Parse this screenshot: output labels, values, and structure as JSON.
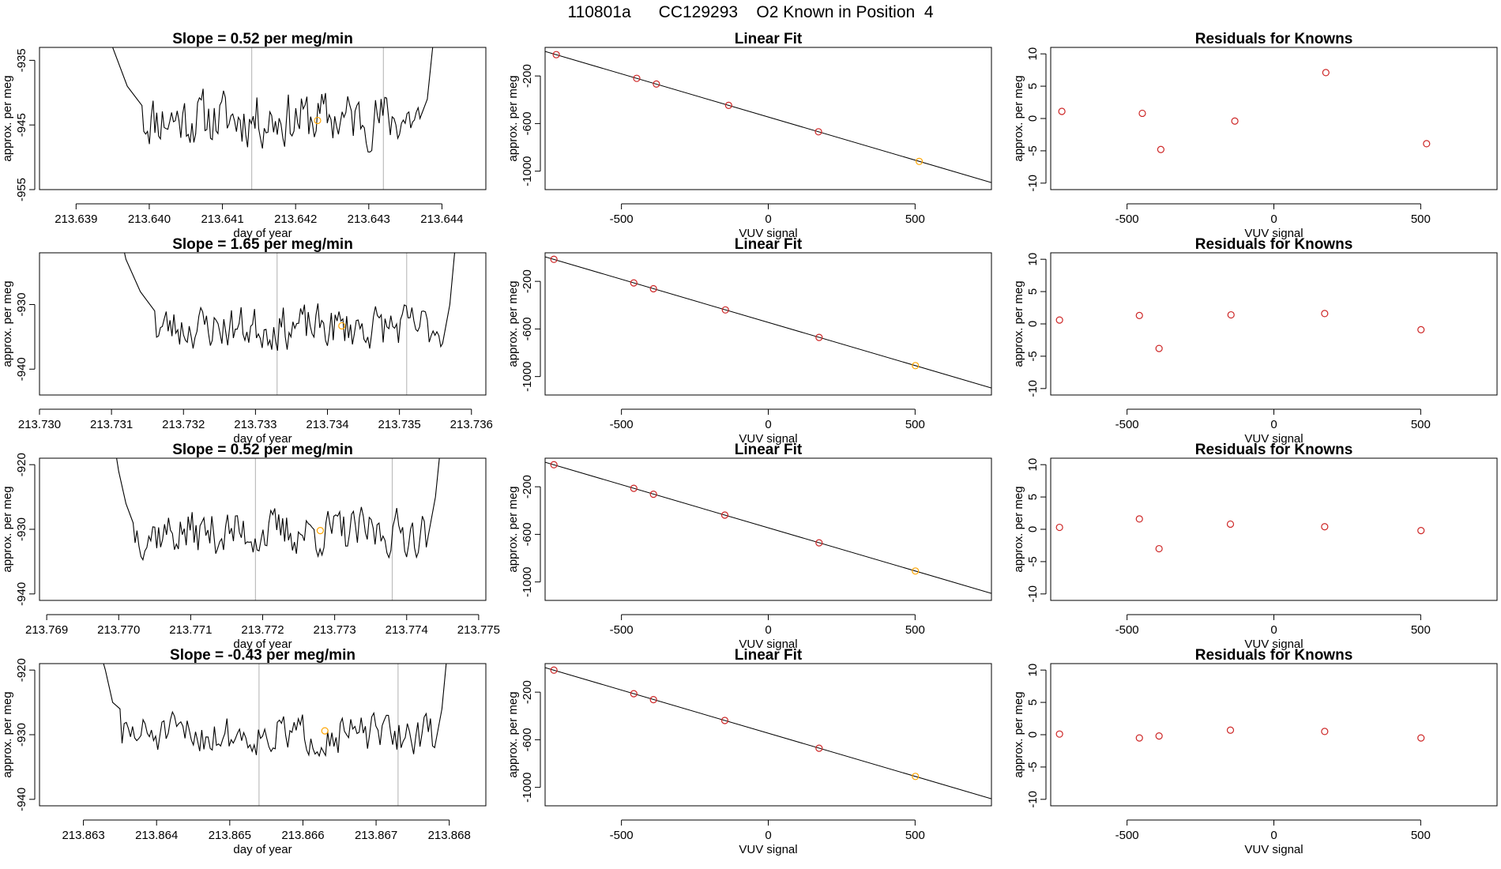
{
  "page": {
    "title": "110801a      CC129293    O2 Known in Position  4"
  },
  "colors": {
    "trace": "#000000",
    "marker": "#ffa500",
    "residual": "#cd2626",
    "vline": "#bebebe",
    "axis": "#000000"
  },
  "chart_data": [
    {
      "id": "trace-row1",
      "type": "line",
      "title": "Slope =  0.52  per meg/min",
      "xlabel": "day of year",
      "ylabel": "approx. per meg",
      "xlim": [
        213.6385,
        213.6446
      ],
      "ylim": [
        -955,
        -933
      ],
      "xticks": [
        213.639,
        213.64,
        213.641,
        213.642,
        213.643,
        213.644
      ],
      "xtick_labels": [
        "213.639",
        "213.640",
        "213.641",
        "213.642",
        "213.643",
        "213.644"
      ],
      "yticks": [
        -955,
        -945,
        -935
      ],
      "ytick_labels": [
        "-955",
        "-945",
        "-935"
      ],
      "vlines": [
        213.6414,
        213.6432
      ],
      "trace_span": [
        213.6394,
        213.6439
      ],
      "trace_mean": -944.0,
      "trace_noise": 2.4,
      "trace_seed": 11,
      "trace_left": [
        [
          213.6394,
          -928
        ],
        [
          213.6395,
          -933
        ],
        [
          213.6397,
          -939
        ],
        [
          213.6399,
          -942
        ]
      ],
      "trace_right": [
        [
          213.6437,
          -944
        ],
        [
          213.6438,
          -941
        ],
        [
          213.6439,
          -930
        ]
      ],
      "marker": {
        "x": 213.6423,
        "y": -944.3
      }
    },
    {
      "id": "fit-row1",
      "type": "scatter",
      "title": "Linear Fit",
      "xlabel": "VUV signal",
      "ylabel": "approx. per meg",
      "xlim": [
        -760,
        760
      ],
      "ylim": [
        -1155,
        40
      ],
      "xticks": [
        -500,
        0,
        500
      ],
      "xtick_labels": [
        "-500",
        "0",
        "500"
      ],
      "yticks": [
        -1000,
        -600,
        -200
      ],
      "ytick_labels": [
        "-1000",
        "-600",
        "-200"
      ],
      "line": {
        "intercept": -545,
        "slope": -0.725,
        "x": [
          -760,
          760
        ]
      },
      "points": [
        {
          "x": -722,
          "y": -21,
          "marker": false
        },
        {
          "x": -448,
          "y": -220,
          "marker": false
        },
        {
          "x": -381,
          "y": -268,
          "marker": false
        },
        {
          "x": -135,
          "y": -447,
          "marker": false
        },
        {
          "x": 171,
          "y": -669,
          "marker": false
        },
        {
          "x": 514,
          "y": -918,
          "marker": true
        }
      ]
    },
    {
      "id": "resid-row1",
      "type": "scatter",
      "title": "Residuals for Knowns",
      "xlabel": "VUV signal",
      "ylabel": "approx. per meg",
      "xlim": [
        -760,
        760
      ],
      "ylim": [
        -11,
        11
      ],
      "xticks": [
        -500,
        0,
        500
      ],
      "xtick_labels": [
        "-500",
        "0",
        "500"
      ],
      "yticks": [
        -10,
        -5,
        0,
        5,
        10
      ],
      "ytick_labels": [
        "-10",
        "-5",
        "0",
        "5",
        "10"
      ],
      "points": [
        {
          "x": -722,
          "y": 1.1
        },
        {
          "x": -448,
          "y": 0.8
        },
        {
          "x": -385,
          "y": -4.8
        },
        {
          "x": -133,
          "y": -0.4
        },
        {
          "x": 177,
          "y": 7.1
        },
        {
          "x": 520,
          "y": -3.9
        }
      ]
    },
    {
      "id": "trace-row2",
      "type": "line",
      "title": "Slope =  1.65  per meg/min",
      "xlabel": "day of year",
      "ylabel": "approx. per meg",
      "xlim": [
        213.73,
        213.7362
      ],
      "ylim": [
        -944,
        -922
      ],
      "xticks": [
        213.73,
        213.731,
        213.732,
        213.733,
        213.734,
        213.735,
        213.736
      ],
      "xtick_labels": [
        "213.730",
        "213.731",
        "213.732",
        "213.733",
        "213.734",
        "213.735",
        "213.736"
      ],
      "yticks": [
        -940,
        -930
      ],
      "ytick_labels": [
        "-940",
        "-930"
      ],
      "vlines": [
        213.7333,
        213.7351
      ],
      "trace_span": [
        213.7311,
        213.7358
      ],
      "trace_mean": -933.5,
      "trace_noise": 1.9,
      "trace_seed": 23,
      "trace_left": [
        [
          213.7311,
          -918
        ],
        [
          213.7312,
          -923
        ],
        [
          213.7314,
          -928
        ],
        [
          213.7316,
          -931
        ]
      ],
      "trace_right": [
        [
          213.7356,
          -936
        ],
        [
          213.7357,
          -930
        ],
        [
          213.7358,
          -918
        ]
      ],
      "marker": {
        "x": 213.7342,
        "y": -933.3
      }
    },
    {
      "id": "fit-row2",
      "type": "scatter",
      "title": "Linear Fit",
      "xlabel": "VUV signal",
      "ylabel": "approx. per meg",
      "xlim": [
        -760,
        760
      ],
      "ylim": [
        -1155,
        40
      ],
      "xticks": [
        -500,
        0,
        500
      ],
      "xtick_labels": [
        "-500",
        "0",
        "500"
      ],
      "yticks": [
        -1000,
        -600,
        -200
      ],
      "ytick_labels": [
        "-1000",
        "-600",
        "-200"
      ],
      "line": {
        "intercept": -545,
        "slope": -0.725,
        "x": [
          -760,
          760
        ]
      },
      "points": [
        {
          "x": -730,
          "y": -15,
          "marker": false
        },
        {
          "x": -458,
          "y": -213,
          "marker": false
        },
        {
          "x": -391,
          "y": -262,
          "marker": false
        },
        {
          "x": -146,
          "y": -440,
          "marker": false
        },
        {
          "x": 173,
          "y": -671,
          "marker": false
        },
        {
          "x": 501,
          "y": -908,
          "marker": true
        }
      ]
    },
    {
      "id": "resid-row2",
      "type": "scatter",
      "title": "Residuals for Knowns",
      "xlabel": "VUV signal",
      "ylabel": "approx. per meg",
      "xlim": [
        -760,
        760
      ],
      "ylim": [
        -11,
        11
      ],
      "xticks": [
        -500,
        0,
        500
      ],
      "xtick_labels": [
        "-500",
        "0",
        "500"
      ],
      "yticks": [
        -10,
        -5,
        0,
        5,
        10
      ],
      "ytick_labels": [
        "-10",
        "-5",
        "0",
        "5",
        "10"
      ],
      "points": [
        {
          "x": -730,
          "y": 0.6
        },
        {
          "x": -458,
          "y": 1.3
        },
        {
          "x": -391,
          "y": -3.8
        },
        {
          "x": -146,
          "y": 1.4
        },
        {
          "x": 173,
          "y": 1.6
        },
        {
          "x": 501,
          "y": -0.9
        }
      ]
    },
    {
      "id": "trace-row3",
      "type": "line",
      "title": "Slope =  0.52  per meg/min",
      "xlabel": "day of year",
      "ylabel": "approx. per meg",
      "xlim": [
        213.7689,
        213.7751
      ],
      "ylim": [
        -941,
        -919
      ],
      "xticks": [
        213.769,
        213.77,
        213.771,
        213.772,
        213.773,
        213.774,
        213.775
      ],
      "xtick_labels": [
        "213.769",
        "213.770",
        "213.771",
        "213.772",
        "213.773",
        "213.774",
        "213.775"
      ],
      "yticks": [
        -940,
        -930,
        -920
      ],
      "ytick_labels": [
        "-940",
        "-930",
        "-920"
      ],
      "vlines": [
        213.7719,
        213.7738
      ],
      "trace_span": [
        213.7699,
        213.7745
      ],
      "trace_mean": -930.5,
      "trace_noise": 2.0,
      "trace_seed": 37,
      "trace_left": [
        [
          213.7699,
          -914
        ],
        [
          213.77,
          -921
        ],
        [
          213.7701,
          -926
        ],
        [
          213.7702,
          -929
        ]
      ],
      "trace_right": [
        [
          213.7743,
          -931
        ],
        [
          213.7744,
          -925
        ],
        [
          213.7745,
          -914
        ]
      ],
      "marker": {
        "x": 213.7728,
        "y": -930.2
      }
    },
    {
      "id": "fit-row3",
      "type": "scatter",
      "title": "Linear Fit",
      "xlabel": "VUV signal",
      "ylabel": "approx. per meg",
      "xlim": [
        -760,
        760
      ],
      "ylim": [
        -1155,
        40
      ],
      "xticks": [
        -500,
        0,
        500
      ],
      "xtick_labels": [
        "-500",
        "0",
        "500"
      ],
      "yticks": [
        -1000,
        -600,
        -200
      ],
      "ytick_labels": [
        "-1000",
        "-600",
        "-200"
      ],
      "line": {
        "intercept": -545,
        "slope": -0.725,
        "x": [
          -760,
          760
        ]
      },
      "points": [
        {
          "x": -730,
          "y": -15,
          "marker": false
        },
        {
          "x": -458,
          "y": -213,
          "marker": false
        },
        {
          "x": -391,
          "y": -263,
          "marker": false
        },
        {
          "x": -148,
          "y": -438,
          "marker": false
        },
        {
          "x": 173,
          "y": -671,
          "marker": false
        },
        {
          "x": 501,
          "y": -908,
          "marker": true
        }
      ]
    },
    {
      "id": "resid-row3",
      "type": "scatter",
      "title": "Residuals for Knowns",
      "xlabel": "VUV signal",
      "ylabel": "approx. per meg",
      "xlim": [
        -760,
        760
      ],
      "ylim": [
        -11,
        11
      ],
      "xticks": [
        -500,
        0,
        500
      ],
      "xtick_labels": [
        "-500",
        "0",
        "500"
      ],
      "yticks": [
        -10,
        -5,
        0,
        5,
        10
      ],
      "ytick_labels": [
        "-10",
        "-5",
        "0",
        "5",
        "10"
      ],
      "points": [
        {
          "x": -730,
          "y": 0.3
        },
        {
          "x": -458,
          "y": 1.6
        },
        {
          "x": -391,
          "y": -3.0
        },
        {
          "x": -148,
          "y": 0.8
        },
        {
          "x": 173,
          "y": 0.4
        },
        {
          "x": 501,
          "y": -0.2
        }
      ]
    },
    {
      "id": "trace-row4",
      "type": "line",
      "title": "Slope =  -0.43  per meg/min",
      "xlabel": "day of year",
      "ylabel": "approx. per meg",
      "xlim": [
        213.8624,
        213.8685
      ],
      "ylim": [
        -941,
        -919
      ],
      "xticks": [
        213.863,
        213.864,
        213.865,
        213.866,
        213.867,
        213.868
      ],
      "xtick_labels": [
        "213.863",
        "213.864",
        "213.865",
        "213.866",
        "213.867",
        "213.868"
      ],
      "yticks": [
        -940,
        -930,
        -920
      ],
      "ytick_labels": [
        "-940",
        "-930",
        "-920"
      ],
      "vlines": [
        213.8654,
        213.8673
      ],
      "trace_span": [
        213.8632,
        213.868
      ],
      "trace_mean": -930.0,
      "trace_noise": 1.7,
      "trace_seed": 51,
      "trace_left": [
        [
          213.8632,
          -916
        ],
        [
          213.8633,
          -920
        ],
        [
          213.8634,
          -925
        ],
        [
          213.8635,
          -926
        ]
      ],
      "trace_right": [
        [
          213.8678,
          -932
        ],
        [
          213.8679,
          -926
        ],
        [
          213.868,
          -914
        ]
      ],
      "marker": {
        "x": 213.8663,
        "y": -929.4
      }
    },
    {
      "id": "fit-row4",
      "type": "scatter",
      "title": "Linear Fit",
      "xlabel": "VUV signal",
      "ylabel": "approx. per meg",
      "xlim": [
        -760,
        760
      ],
      "ylim": [
        -1155,
        40
      ],
      "xticks": [
        -500,
        0,
        500
      ],
      "xtick_labels": [
        "-500",
        "0",
        "500"
      ],
      "yticks": [
        -1000,
        -600,
        -200
      ],
      "ytick_labels": [
        "-1000",
        "-600",
        "-200"
      ],
      "line": {
        "intercept": -545,
        "slope": -0.725,
        "x": [
          -760,
          760
        ]
      },
      "points": [
        {
          "x": -730,
          "y": -15,
          "marker": false
        },
        {
          "x": -458,
          "y": -213,
          "marker": false
        },
        {
          "x": -391,
          "y": -263,
          "marker": false
        },
        {
          "x": -148,
          "y": -438,
          "marker": false
        },
        {
          "x": 173,
          "y": -671,
          "marker": false
        },
        {
          "x": 501,
          "y": -908,
          "marker": true
        }
      ]
    },
    {
      "id": "resid-row4",
      "type": "scatter",
      "title": "Residuals for Knowns",
      "xlabel": "VUV signal",
      "ylabel": "approx. per meg",
      "xlim": [
        -760,
        760
      ],
      "ylim": [
        -11,
        11
      ],
      "xticks": [
        -500,
        0,
        500
      ],
      "xtick_labels": [
        "-500",
        "0",
        "500"
      ],
      "yticks": [
        -10,
        -5,
        0,
        5,
        10
      ],
      "ytick_labels": [
        "-10",
        "-5",
        "0",
        "5",
        "10"
      ],
      "points": [
        {
          "x": -730,
          "y": 0.1
        },
        {
          "x": -458,
          "y": -0.5
        },
        {
          "x": -391,
          "y": -0.2
        },
        {
          "x": -148,
          "y": 0.7
        },
        {
          "x": 173,
          "y": 0.5
        },
        {
          "x": 501,
          "y": -0.5
        }
      ]
    }
  ]
}
